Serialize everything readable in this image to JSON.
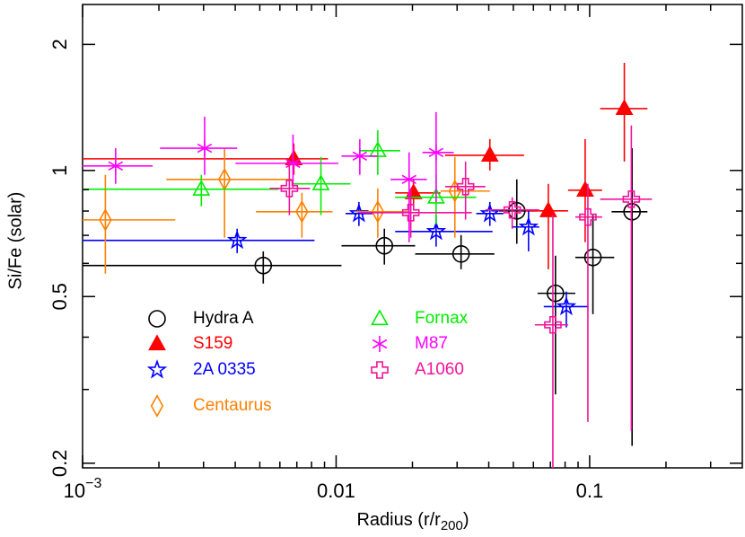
{
  "chart_data": {
    "type": "scatter",
    "x_label": {
      "text": "Radius (r/r",
      "subscript": "200",
      "close": ")"
    },
    "y_label": "Si/Fe (solar)",
    "x_log": true,
    "y_log": true,
    "xlim": [
      0.001,
      0.4
    ],
    "ylim": [
      0.195,
      2.49
    ],
    "xticks": [
      {
        "value": 0.001,
        "label": "10",
        "exponent": "−3"
      },
      0.01,
      0.1
    ],
    "xminor_ticks": [
      0.002,
      0.003,
      0.004,
      0.005,
      0.006,
      0.007,
      0.008,
      0.009,
      0.02,
      0.03,
      0.04,
      0.05,
      0.06,
      0.07,
      0.08,
      0.09,
      0.2,
      0.3
    ],
    "yticks": [
      0.2,
      0.5,
      1,
      2
    ],
    "yminor_ticks": [
      0.3,
      0.4,
      0.6,
      0.7,
      0.8,
      0.9
    ],
    "legend": "lower-left",
    "series": [
      {
        "name": "Hydra A",
        "color": "#000000",
        "marker": "circle",
        "x": [
          0.00516,
          0.0155,
          0.0311,
          0.0516,
          0.0733,
          0.103,
          0.147
        ],
        "y": [
          0.593,
          0.661,
          0.632,
          0.801,
          0.509,
          0.62,
          0.797
        ],
        "x_lo": [
          0.001,
          0.0105,
          0.0205,
          0.0439,
          0.0623,
          0.0878,
          0.122
        ],
        "x_hi": [
          0.0105,
          0.0205,
          0.0421,
          0.0618,
          0.0878,
          0.125,
          0.169
        ],
        "y_lo": [
          0.537,
          0.596,
          0.581,
          0.668,
          0.292,
          0.454,
          0.22
        ],
        "y_hi": [
          0.641,
          0.726,
          0.701,
          0.952,
          0.626,
          0.782,
          1.13
        ]
      },
      {
        "name": "S159",
        "color": "#ff0000",
        "marker": "filled-triangle",
        "x": [
          0.00681,
          0.0202,
          0.0404,
          0.0687,
          0.096,
          0.137
        ],
        "y": [
          1.066,
          0.884,
          1.087,
          0.801,
          0.897,
          1.405
        ],
        "x_lo": [
          0.001,
          0.0171,
          0.0269,
          0.056,
          0.0822,
          0.11
        ],
        "x_hi": [
          0.00929,
          0.0258,
          0.0551,
          0.0822,
          0.112,
          0.169
        ],
        "y_lo": [
          0.976,
          0.821,
          1.0,
          0.581,
          0.674,
          1.05
        ],
        "y_hi": [
          1.16,
          0.952,
          1.188,
          0.929,
          1.188,
          1.807
        ]
      },
      {
        "name": "2A 0335",
        "color": "#0000ff",
        "marker": "star",
        "x": [
          0.00407,
          0.0123,
          0.0248,
          0.0404,
          0.0574,
          0.0809
        ],
        "y": [
          0.681,
          0.789,
          0.715,
          0.789,
          0.733,
          0.473
        ],
        "x_lo": [
          0.001,
          0.0109,
          0.0171,
          0.0357,
          0.0495,
          0.0659
        ],
        "x_hi": [
          0.00822,
          0.014,
          0.0414,
          0.0457,
          0.0633,
          0.0991
        ],
        "y_lo": [
          0.635,
          0.737,
          0.658,
          0.737,
          0.641,
          0.422
        ],
        "y_hi": [
          0.726,
          0.841,
          0.782,
          0.841,
          0.801,
          0.514
        ]
      },
      {
        "name": "Centaurus",
        "color": "#ff8000",
        "marker": "diamond",
        "x": [
          0.00123,
          0.00363,
          0.00733,
          0.0146,
          0.0294
        ],
        "y": [
          0.762,
          0.952,
          0.797,
          0.797,
          0.893
        ],
        "x_lo": [
          0.001,
          0.00214,
          0.00483,
          0.0119,
          0.0258
        ],
        "x_hi": [
          0.00232,
          0.0067,
          0.00968,
          0.0194,
          0.0404
        ],
        "y_lo": [
          0.567,
          0.691,
          0.691,
          0.691,
          0.691
        ],
        "y_hi": [
          0.976,
          1.13,
          0.884,
          0.906,
          1.077
        ]
      },
      {
        "name": "Fornax",
        "color": "#00ee00",
        "marker": "triangle",
        "x": [
          0.00294,
          0.00871,
          0.0146,
          0.0248
        ],
        "y": [
          0.902,
          0.929,
          1.115,
          0.863
        ],
        "x_lo": [
          0.001,
          0.0067,
          0.0124,
          0.0171
        ],
        "x_hi": [
          0.00593,
          0.0114,
          0.0179,
          0.0357
        ],
        "y_lo": [
          0.821,
          0.782,
          0.976,
          0.744
        ],
        "y_hi": [
          0.976,
          1.077,
          1.248,
          0.976
        ]
      },
      {
        "name": "M87",
        "color": "#ff00ff",
        "marker": "asterisk",
        "x": [
          0.00135,
          0.00303,
          0.00676,
          0.0124,
          0.0194,
          0.0248
        ],
        "y": [
          1.025,
          1.13,
          1.04,
          1.082,
          0.952,
          1.104
        ],
        "x_lo": [
          0.001,
          0.00202,
          0.00401,
          0.0105,
          0.0164,
          0.0219
        ],
        "x_hi": [
          0.00189,
          0.00407,
          0.0102,
          0.0146,
          0.0228,
          0.0291
        ],
        "y_lo": [
          0.929,
          0.976,
          0.906,
          0.976,
          0.674,
          0.841
        ],
        "y_hi": [
          1.13,
          1.344,
          1.218,
          1.188,
          1.104,
          1.378
        ]
      },
      {
        "name": "A1060",
        "color": "#f0149a",
        "marker": "cross",
        "x": [
          0.00654,
          0.0197,
          0.0324,
          0.0495,
          0.0716,
          0.0984,
          0.146
        ],
        "y": [
          0.906,
          0.793,
          0.915,
          0.805,
          0.428,
          0.774,
          0.854
        ],
        "x_lo": [
          0.00547,
          0.0124,
          0.0269,
          0.0388,
          0.0608,
          0.0878,
          0.11
        ],
        "x_hi": [
          0.00789,
          0.0343,
          0.0388,
          0.0633,
          0.0822,
          0.112,
          0.176
        ],
        "y_lo": [
          0.782,
          0.691,
          0.763,
          0.726,
          0.19,
          0.251,
          0.239
        ],
        "y_hi": [
          1.05,
          0.906,
          1.05,
          0.863,
          0.782,
          0.929,
          1.28
        ]
      }
    ]
  }
}
